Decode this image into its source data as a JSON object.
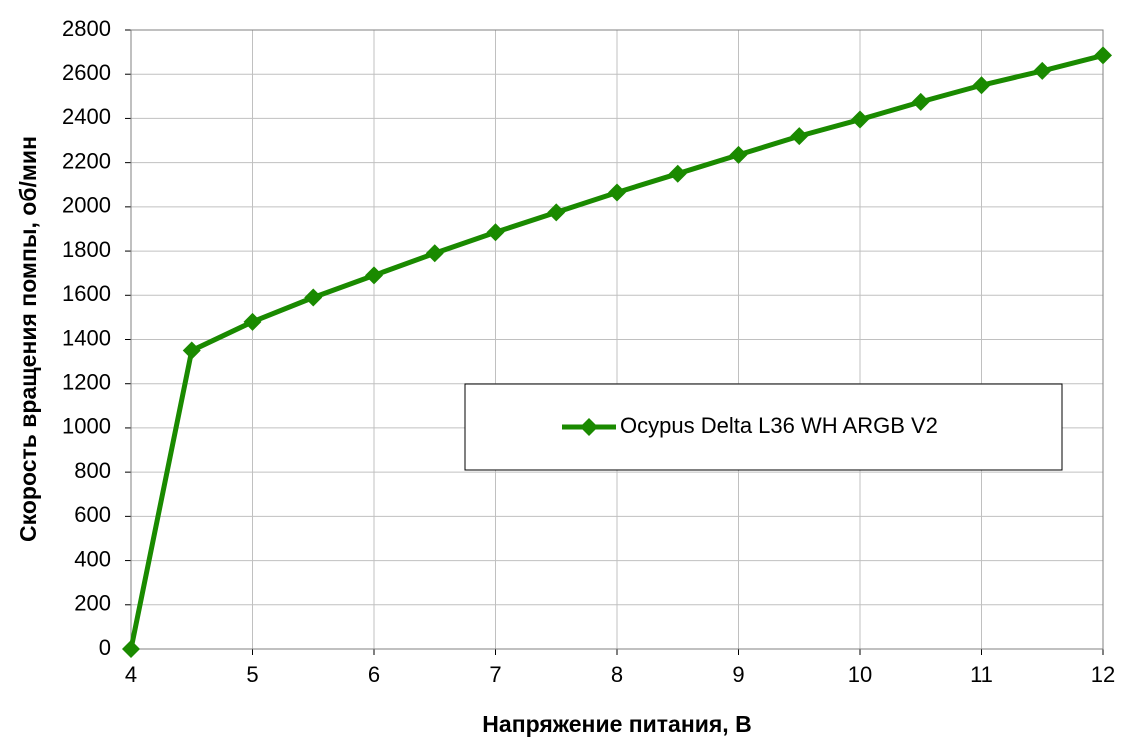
{
  "chart_data": {
    "type": "line",
    "xlabel": "Напряжение питания, В",
    "ylabel": "Скорость вращения помпы, об/мин",
    "x": [
      4,
      4.5,
      5,
      5.5,
      6,
      6.5,
      7,
      7.5,
      8,
      8.5,
      9,
      9.5,
      10,
      10.5,
      11,
      11.5,
      12
    ],
    "series": [
      {
        "name": "Ocypus Delta L36 WH ARGB V2",
        "color": "#1a8a00",
        "values": [
          0,
          1350,
          1480,
          1590,
          1690,
          1790,
          1885,
          1975,
          2065,
          2150,
          2235,
          2320,
          2395,
          2475,
          2550,
          2615,
          2685
        ]
      }
    ],
    "xlim": [
      4,
      12
    ],
    "xticks": [
      4,
      5,
      6,
      7,
      8,
      9,
      10,
      11,
      12
    ],
    "ylim": [
      0,
      2800
    ],
    "yticks": [
      0,
      200,
      400,
      600,
      800,
      1000,
      1200,
      1400,
      1600,
      1800,
      2000,
      2200,
      2400,
      2600,
      2800
    ],
    "grid": true
  }
}
